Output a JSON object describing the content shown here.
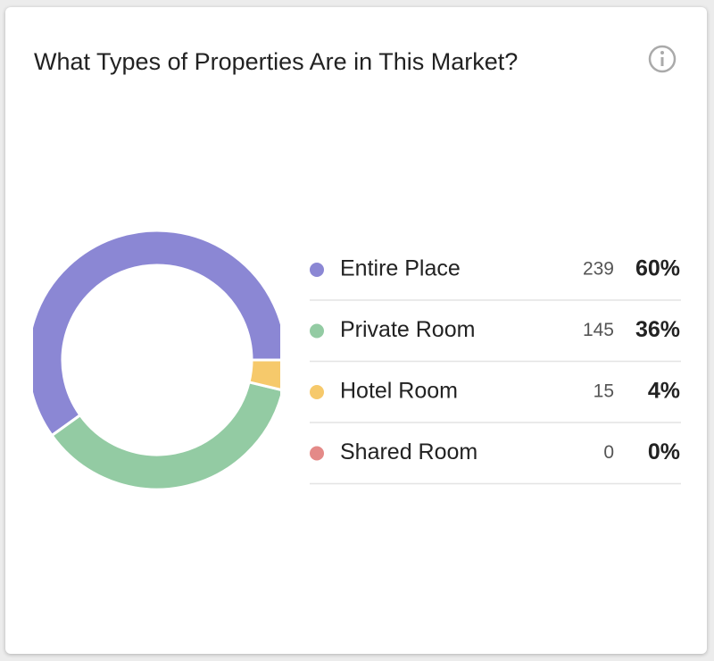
{
  "chart_data": {
    "type": "pie",
    "title": "What Types of Properties Are in This Market?",
    "categories": [
      "Entire Place",
      "Private Room",
      "Hotel Room",
      "Shared Room"
    ],
    "values": [
      239,
      145,
      15,
      0
    ],
    "share_labels": [
      "60%",
      "36%",
      "4%",
      "0%"
    ],
    "colors": [
      "#8b87d4",
      "#93cba3",
      "#f6c96b",
      "#e48a88"
    ]
  }
}
